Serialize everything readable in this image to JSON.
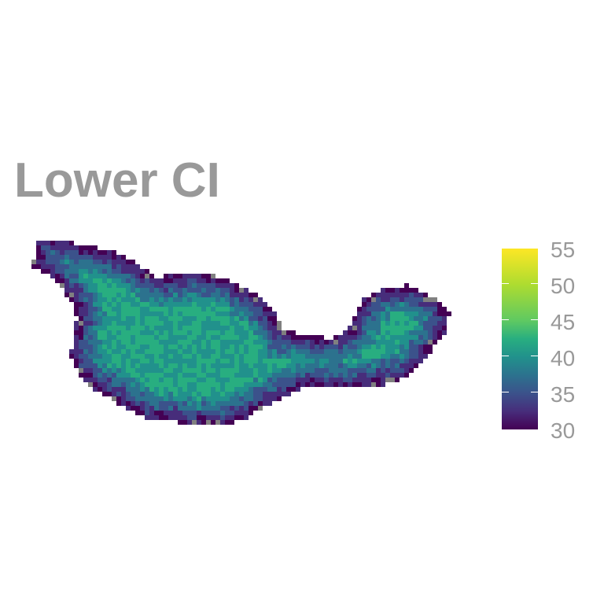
{
  "title": "Lower CI",
  "legend": {
    "min": 30,
    "max": 55,
    "ticks": [
      "55",
      "50",
      "45",
      "40",
      "35",
      "30"
    ],
    "palette": [
      "#440154",
      "#472d7b",
      "#3b528b",
      "#2c728e",
      "#21918c",
      "#28ae80",
      "#5ec962",
      "#addc30",
      "#fde725"
    ],
    "na_color": "#808080"
  },
  "map": {
    "description_value_range": [
      30,
      45
    ]
  }
}
